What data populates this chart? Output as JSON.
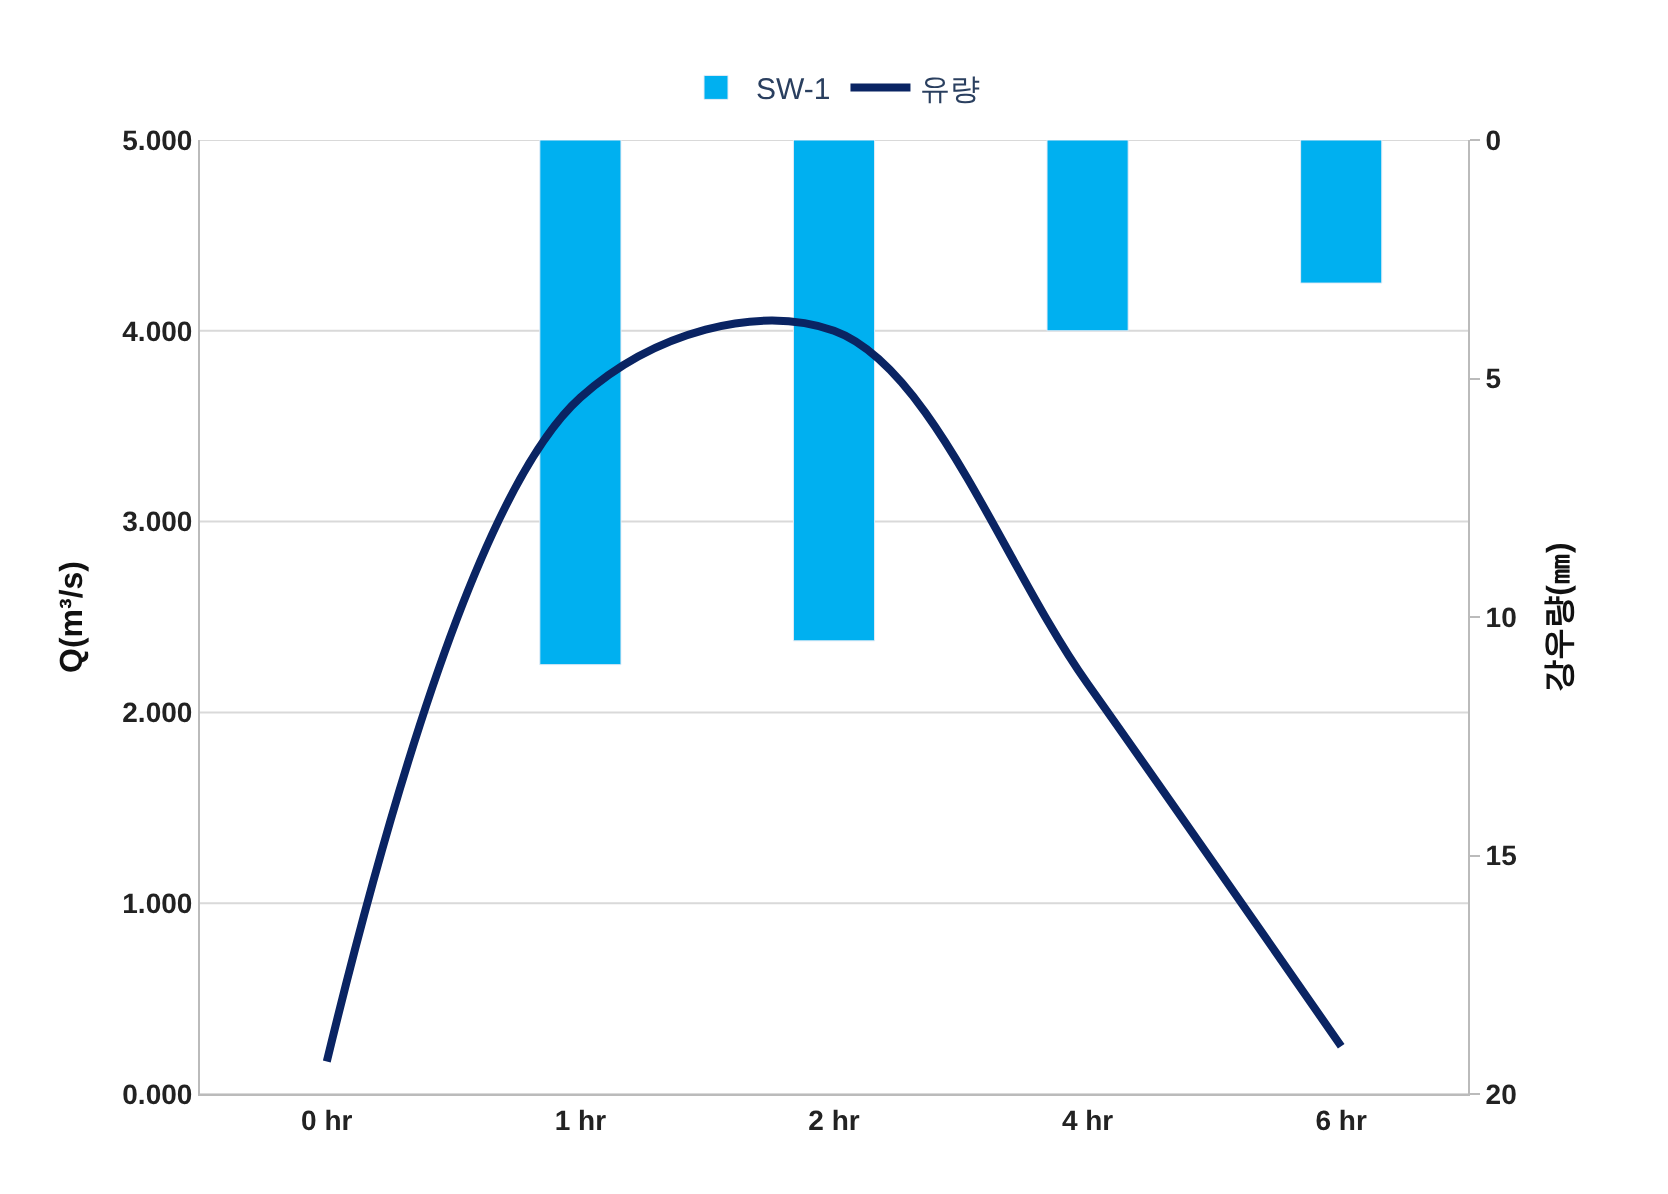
{
  "chart_data": {
    "type": "bar",
    "categories": [
      "0 hr",
      "1 hr",
      "2 hr",
      "4 hr",
      "6 hr"
    ],
    "series": [
      {
        "name": "SW-1",
        "axis": "y2",
        "color": "#00b0f0",
        "values": [
          null,
          11.0,
          10.5,
          4.0,
          3.0
        ]
      },
      {
        "name": "유량",
        "type": "line",
        "color": "#0a2463",
        "values": [
          0.17,
          3.65,
          4.0,
          2.15,
          0.25
        ]
      }
    ],
    "ylabel": "Q(m³/s)",
    "y2label": "강우량(㎜)",
    "ylim": [
      0,
      5
    ],
    "yticks": [
      {
        "value": 0,
        "label": "0.000"
      },
      {
        "value": 1,
        "label": "1.000"
      },
      {
        "value": 2,
        "label": "2.000"
      },
      {
        "value": 3,
        "label": "3.000"
      },
      {
        "value": 4,
        "label": "4.000"
      },
      {
        "value": 5,
        "label": "5.000"
      }
    ],
    "y2lim": [
      20,
      0
    ],
    "y2ticks": [
      0,
      5,
      10,
      15,
      20
    ],
    "grid": "y",
    "legend": "top",
    "marker": "none",
    "line_style": "solid"
  }
}
